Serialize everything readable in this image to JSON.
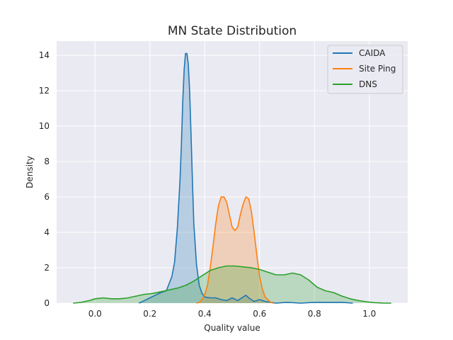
{
  "chart_data": {
    "type": "area",
    "title": "MN State Distribution",
    "xlabel": "Quality value",
    "ylabel": "Density",
    "xlim": [
      -0.14,
      1.14
    ],
    "ylim": [
      0,
      14.8
    ],
    "xticks": [
      0.0,
      0.2,
      0.4,
      0.6,
      0.8,
      1.0
    ],
    "xtick_labels": [
      "0.0",
      "0.2",
      "0.4",
      "0.6",
      "0.8",
      "1.0"
    ],
    "yticks": [
      0,
      2,
      4,
      6,
      8,
      10,
      12,
      14
    ],
    "ytick_labels": [
      "0",
      "2",
      "4",
      "6",
      "8",
      "10",
      "12",
      "14"
    ],
    "grid": true,
    "legend_position": "top-right",
    "series": [
      {
        "name": "CAIDA",
        "color": "#1f77b4",
        "x": [
          0.16,
          0.18,
          0.2,
          0.22,
          0.24,
          0.26,
          0.28,
          0.29,
          0.3,
          0.31,
          0.315,
          0.32,
          0.325,
          0.33,
          0.335,
          0.34,
          0.345,
          0.35,
          0.355,
          0.36,
          0.37,
          0.38,
          0.39,
          0.4,
          0.42,
          0.44,
          0.46,
          0.48,
          0.5,
          0.52,
          0.54,
          0.55,
          0.56,
          0.58,
          0.6,
          0.62,
          0.64,
          0.66,
          0.7,
          0.75,
          0.8,
          0.85,
          0.9,
          0.94
        ],
        "y": [
          0.0,
          0.15,
          0.3,
          0.45,
          0.6,
          0.7,
          1.5,
          2.3,
          4.2,
          7.0,
          9.0,
          11.5,
          13.2,
          14.1,
          14.1,
          13.5,
          12.0,
          9.5,
          7.0,
          4.5,
          2.2,
          1.0,
          0.55,
          0.35,
          0.3,
          0.3,
          0.2,
          0.15,
          0.3,
          0.15,
          0.35,
          0.45,
          0.3,
          0.1,
          0.2,
          0.1,
          0.05,
          0.0,
          0.05,
          0.0,
          0.05,
          0.05,
          0.05,
          0.0
        ]
      },
      {
        "name": "Site Ping",
        "color": "#ff7f0e",
        "x": [
          0.37,
          0.38,
          0.39,
          0.4,
          0.41,
          0.42,
          0.43,
          0.44,
          0.45,
          0.46,
          0.47,
          0.48,
          0.49,
          0.5,
          0.51,
          0.52,
          0.53,
          0.54,
          0.55,
          0.56,
          0.57,
          0.58,
          0.59,
          0.6,
          0.61,
          0.62,
          0.63,
          0.64,
          0.65
        ],
        "y": [
          0.0,
          0.05,
          0.2,
          0.5,
          1.0,
          2.0,
          3.2,
          4.5,
          5.5,
          6.0,
          6.0,
          5.7,
          5.0,
          4.3,
          4.1,
          4.3,
          5.0,
          5.6,
          6.0,
          5.9,
          5.2,
          4.0,
          2.7,
          1.5,
          0.8,
          0.35,
          0.2,
          0.05,
          0.0
        ]
      },
      {
        "name": "DNS",
        "color": "#2ca02c",
        "x": [
          -0.08,
          -0.05,
          -0.02,
          0.0,
          0.03,
          0.06,
          0.09,
          0.12,
          0.15,
          0.18,
          0.21,
          0.24,
          0.27,
          0.3,
          0.33,
          0.36,
          0.39,
          0.42,
          0.45,
          0.48,
          0.51,
          0.54,
          0.57,
          0.6,
          0.63,
          0.66,
          0.69,
          0.72,
          0.75,
          0.78,
          0.81,
          0.84,
          0.87,
          0.9,
          0.93,
          0.96,
          0.99,
          1.02,
          1.05,
          1.08
        ],
        "y": [
          0.0,
          0.05,
          0.15,
          0.25,
          0.3,
          0.25,
          0.25,
          0.3,
          0.4,
          0.5,
          0.55,
          0.65,
          0.75,
          0.85,
          1.0,
          1.25,
          1.55,
          1.85,
          2.0,
          2.1,
          2.1,
          2.05,
          2.0,
          1.9,
          1.75,
          1.6,
          1.6,
          1.7,
          1.6,
          1.3,
          0.9,
          0.7,
          0.6,
          0.4,
          0.25,
          0.15,
          0.08,
          0.03,
          0.01,
          0.0
        ]
      }
    ]
  }
}
